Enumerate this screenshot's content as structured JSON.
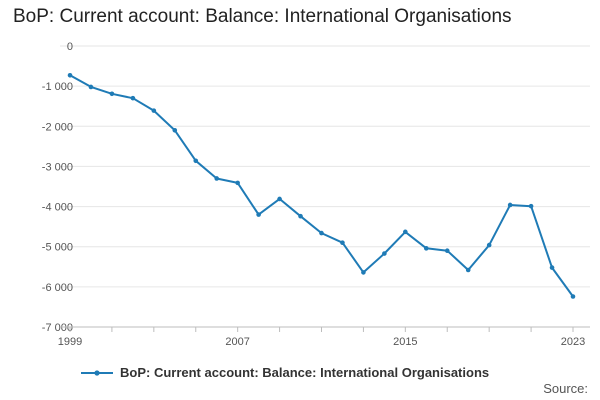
{
  "colors": {
    "series": "#1f7bb6",
    "grid": "#e6e6e6",
    "axis": "#bdbdbd"
  },
  "footer": {
    "source_label": "Source:"
  },
  "chart_data": {
    "type": "line",
    "title": "BoP: Current account: Balance: International Organisations",
    "xlabel": "",
    "ylabel": "",
    "xlim": [
      1999,
      2023
    ],
    "ylim": [
      -7000,
      0
    ],
    "x_ticks": [
      1999,
      2007,
      2015,
      2023
    ],
    "y_ticks": [
      0,
      -1000,
      -2000,
      -3000,
      -4000,
      -5000,
      -6000,
      -7000
    ],
    "y_tick_labels": [
      "0",
      "-1 000",
      "-2 000",
      "-3 000",
      "-4 000",
      "-5 000",
      "-6 000",
      "-7 000"
    ],
    "grid": true,
    "legend_position": "bottom",
    "series": [
      {
        "name": "BoP: Current account: Balance: International Organisations",
        "x": [
          1999,
          2000,
          2001,
          2002,
          2003,
          2004,
          2005,
          2006,
          2007,
          2008,
          2009,
          2010,
          2011,
          2012,
          2013,
          2014,
          2015,
          2016,
          2017,
          2018,
          2019,
          2020,
          2021,
          2022,
          2023
        ],
        "values": [
          -730,
          -1020,
          -1190,
          -1300,
          -1610,
          -2100,
          -2860,
          -3300,
          -3410,
          -4200,
          -3810,
          -4240,
          -4660,
          -4900,
          -5640,
          -5170,
          -4630,
          -5040,
          -5100,
          -5580,
          -4960,
          -3960,
          -3990,
          -5520,
          -6240
        ]
      }
    ]
  }
}
